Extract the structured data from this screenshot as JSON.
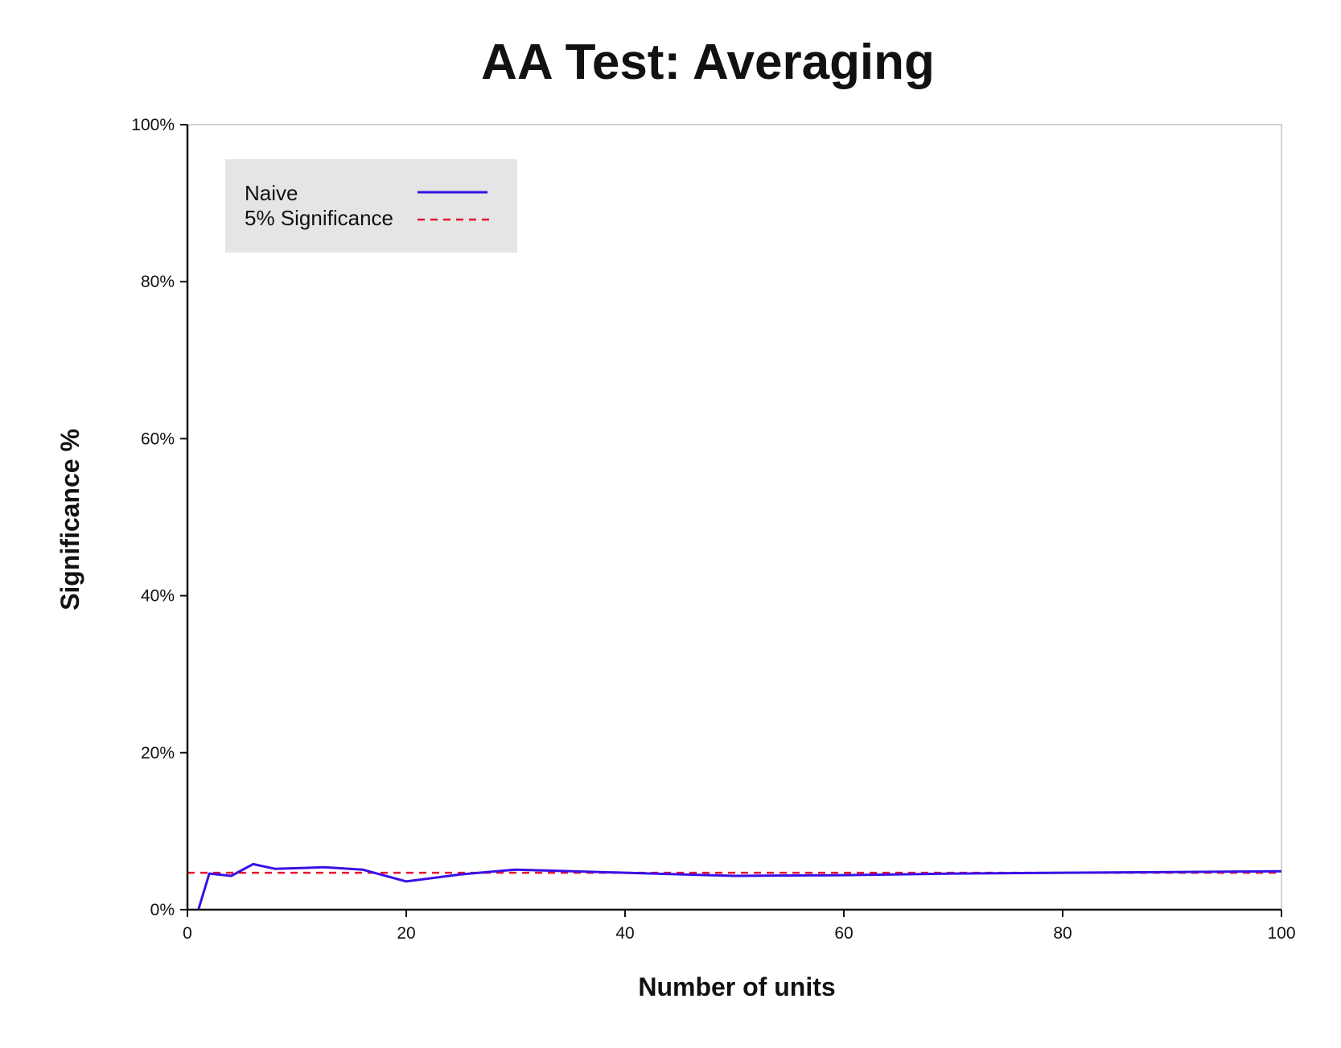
{
  "chart_data": {
    "type": "line",
    "title": "AA Test: Averaging",
    "xlabel": "Number of units",
    "ylabel": "Significance %",
    "xlim": [
      0,
      100
    ],
    "ylim": [
      0,
      100
    ],
    "x_ticks": [
      0,
      20,
      40,
      60,
      80,
      100
    ],
    "x_tick_labels": [
      "0",
      "20",
      "40",
      "60",
      "80",
      "100"
    ],
    "y_ticks": [
      0,
      20,
      40,
      60,
      80,
      100
    ],
    "y_tick_labels": [
      "0%",
      "20%",
      "40%",
      "60%",
      "80%",
      "100%"
    ],
    "grid": false,
    "legend_position": "top-left",
    "series": [
      {
        "name": "Naive",
        "color": "#3a10e5",
        "style": "solid",
        "x": [
          1,
          2,
          4,
          6,
          8,
          12.5,
          16,
          20,
          25,
          30,
          40,
          50,
          60,
          70,
          80,
          90,
          100
        ],
        "y": [
          0,
          4.6,
          4.3,
          5.8,
          5.2,
          5.4,
          5.1,
          3.6,
          4.5,
          5.1,
          4.7,
          4.3,
          4.4,
          4.6,
          4.7,
          4.8,
          4.9
        ]
      },
      {
        "name": "5% Significance",
        "color": "#e8112d",
        "style": "dashed",
        "x": [
          0,
          100
        ],
        "y": [
          4.7,
          4.7
        ]
      }
    ]
  }
}
